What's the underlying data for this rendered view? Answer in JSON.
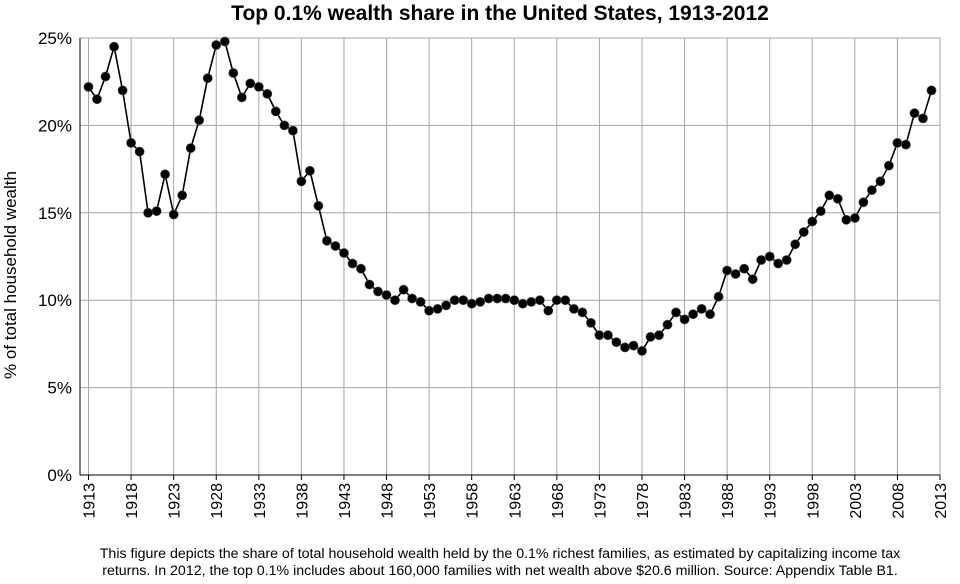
{
  "chart_data": {
    "type": "line",
    "title": "Top 0.1% wealth share in the United States, 1913-2012",
    "xlabel": "",
    "ylabel": "% of total household wealth",
    "ylim": [
      0,
      25
    ],
    "yticks": [
      "0%",
      "5%",
      "10%",
      "15%",
      "20%",
      "25%"
    ],
    "xticks": [
      "1913",
      "1918",
      "1923",
      "1928",
      "1933",
      "1938",
      "1943",
      "1948",
      "1953",
      "1958",
      "1963",
      "1968",
      "1973",
      "1978",
      "1983",
      "1988",
      "1993",
      "1998",
      "2003",
      "2008",
      "2013"
    ],
    "grid": true,
    "marker": "circle",
    "series": [
      {
        "name": "",
        "color": "#000000",
        "x": [
          1913,
          1914,
          1915,
          1916,
          1917,
          1918,
          1919,
          1920,
          1921,
          1922,
          1923,
          1924,
          1925,
          1926,
          1927,
          1928,
          1929,
          1930,
          1931,
          1932,
          1933,
          1934,
          1935,
          1936,
          1937,
          1938,
          1939,
          1940,
          1941,
          1942,
          1943,
          1944,
          1945,
          1946,
          1947,
          1948,
          1949,
          1950,
          1951,
          1952,
          1953,
          1954,
          1955,
          1956,
          1957,
          1958,
          1959,
          1960,
          1961,
          1962,
          1963,
          1964,
          1965,
          1966,
          1967,
          1968,
          1969,
          1970,
          1971,
          1972,
          1973,
          1974,
          1975,
          1976,
          1977,
          1978,
          1979,
          1980,
          1981,
          1982,
          1983,
          1984,
          1985,
          1986,
          1987,
          1988,
          1989,
          1990,
          1991,
          1992,
          1993,
          1994,
          1995,
          1996,
          1997,
          1998,
          1999,
          2000,
          2001,
          2002,
          2003,
          2004,
          2005,
          2006,
          2007,
          2008,
          2009,
          2010,
          2011,
          2012
        ],
        "values": [
          22.2,
          21.5,
          22.8,
          24.5,
          22.0,
          19.0,
          18.5,
          15.0,
          15.1,
          17.2,
          14.9,
          16.0,
          18.7,
          20.3,
          22.7,
          24.6,
          24.8,
          23.0,
          21.6,
          22.4,
          22.2,
          21.8,
          20.8,
          20.0,
          19.7,
          16.8,
          17.4,
          15.4,
          13.4,
          13.1,
          12.7,
          12.1,
          11.8,
          10.9,
          10.5,
          10.3,
          10.0,
          10.6,
          10.1,
          9.9,
          9.4,
          9.5,
          9.7,
          10.0,
          10.0,
          9.8,
          9.9,
          10.1,
          10.1,
          10.1,
          10.0,
          9.8,
          9.9,
          10.0,
          9.4,
          10.0,
          10.0,
          9.5,
          9.3,
          8.7,
          8.0,
          8.0,
          7.6,
          7.3,
          7.4,
          7.1,
          7.9,
          8.0,
          8.6,
          9.3,
          8.9,
          9.2,
          9.5,
          9.2,
          10.2,
          11.7,
          11.5,
          11.8,
          11.2,
          12.3,
          12.5,
          12.1,
          12.3,
          13.2,
          13.9,
          14.5,
          15.1,
          16.0,
          15.8,
          14.6,
          14.7,
          15.6,
          16.3,
          16.8,
          17.7,
          19.0,
          18.9,
          20.7,
          20.4,
          22.0
        ]
      }
    ],
    "caption": [
      "This figure depicts the share of total household wealth held by the 0.1% richest families, as estimated by capitalizing income tax",
      "returns. In 2012, the top 0.1% includes about 160,000 families with net wealth above $20.6 million. Source: Appendix Table B1."
    ]
  }
}
